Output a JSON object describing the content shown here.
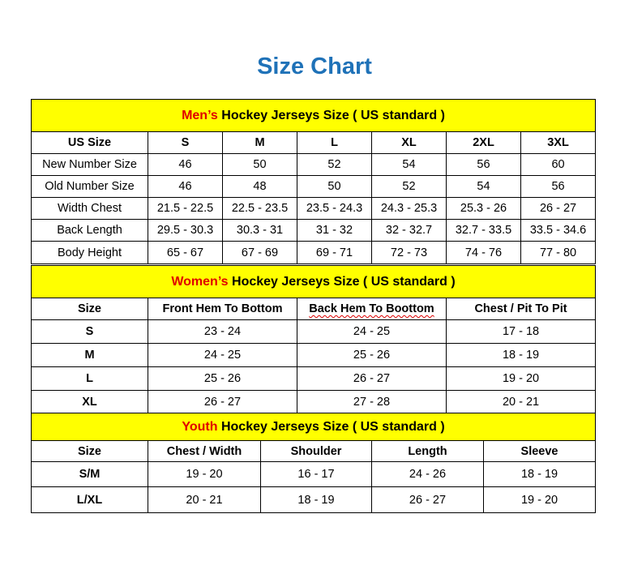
{
  "title": "Size Chart",
  "colors": {
    "title": "#1f72b8",
    "header_bg": "#ffff00",
    "highlight": "#e00000"
  },
  "sections": [
    {
      "id": "men",
      "header_highlight": "Men’s",
      "header_rest": " Hockey Jerseys Size ( US standard )",
      "columns": [
        "US Size",
        "S",
        "M",
        "L",
        "XL",
        "2XL",
        "3XL"
      ],
      "rows": [
        [
          "New Number Size",
          "46",
          "50",
          "52",
          "54",
          "56",
          "60"
        ],
        [
          "Old Number Size",
          "46",
          "48",
          "50",
          "52",
          "54",
          "56"
        ],
        [
          "Width Chest",
          "21.5 - 22.5",
          "22.5 - 23.5",
          "23.5 - 24.3",
          "24.3 - 25.3",
          "25.3 - 26",
          "26 - 27"
        ],
        [
          "Back Length",
          "29.5 - 30.3",
          "30.3 - 31",
          "31 - 32",
          "32 - 32.7",
          "32.7 - 33.5",
          "33.5 - 34.6"
        ],
        [
          "Body Height",
          "65 - 67",
          "67 - 69",
          "69 - 71",
          "72 - 73",
          "74 - 76",
          "77 - 80"
        ]
      ]
    },
    {
      "id": "women",
      "header_highlight": "Women’s",
      "header_rest": " Hockey Jerseys Size ( US standard )",
      "columns": [
        "Size",
        "Front Hem To Bottom",
        "Back Hem To Boottom",
        "Chest / Pit To Pit"
      ],
      "rows": [
        [
          "S",
          "23 - 24",
          "24 - 25",
          "17 - 18"
        ],
        [
          "M",
          "24 - 25",
          "25 - 26",
          "18 - 19"
        ],
        [
          "L",
          "25 - 26",
          "26 - 27",
          "19 - 20"
        ],
        [
          "XL",
          "26 - 27",
          "27 - 28",
          "20 - 21"
        ]
      ]
    },
    {
      "id": "youth",
      "header_highlight": "Youth",
      "header_rest": " Hockey Jerseys Size ( US standard )",
      "columns": [
        "Size",
        "Chest / Width",
        "Shoulder",
        "Length",
        "Sleeve"
      ],
      "rows": [
        [
          "S/M",
          "19 - 20",
          "16 - 17",
          "24 - 26",
          "18 - 19"
        ],
        [
          "L/XL",
          "20 - 21",
          "18 - 19",
          "26 - 27",
          "19 - 20"
        ]
      ]
    }
  ]
}
